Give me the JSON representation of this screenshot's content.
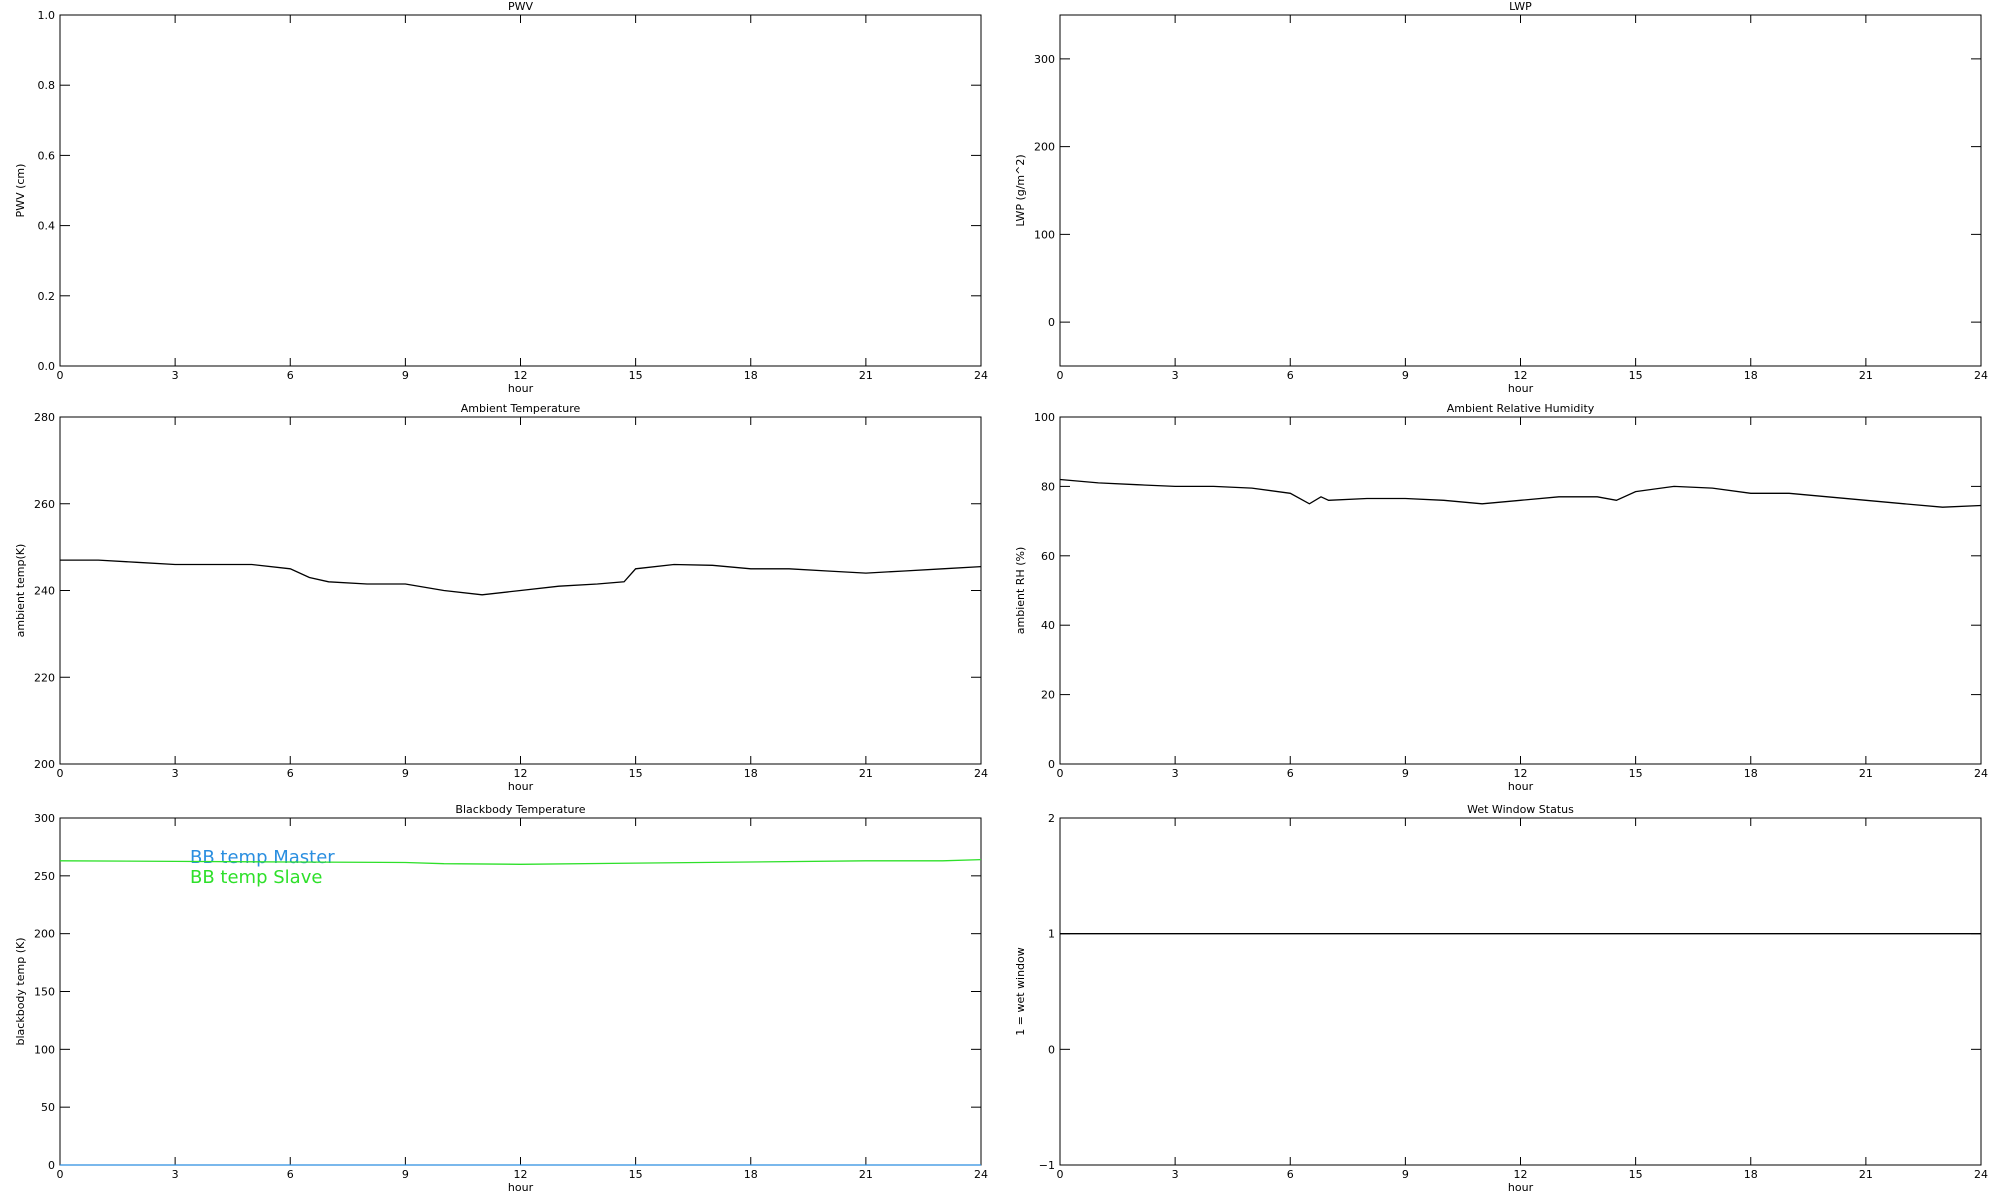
{
  "chart_data": [
    {
      "type": "line",
      "title": "PWV",
      "xlabel": "hour",
      "ylabel": "PWV (cm)",
      "xlim": [
        0,
        24
      ],
      "xticks": [
        0,
        3,
        6,
        9,
        12,
        15,
        18,
        21,
        24
      ],
      "ylim": [
        0,
        1
      ],
      "yticks": [
        {
          "value": 0,
          "label": "0.0"
        },
        0.2,
        0.4,
        0.6,
        0.8,
        {
          "value": 1,
          "label": "1.0"
        }
      ],
      "series": []
    },
    {
      "type": "line",
      "title": "LWP",
      "xlabel": "hour",
      "ylabel": "LWP (g/m^2)",
      "xlim": [
        0,
        24
      ],
      "xticks": [
        0,
        3,
        6,
        9,
        12,
        15,
        18,
        21,
        24
      ],
      "ylim": [
        -50,
        350
      ],
      "yticks": [
        0,
        100,
        200,
        300
      ],
      "series": []
    },
    {
      "type": "line",
      "title": "Ambient Temperature",
      "xlabel": "hour",
      "ylabel": "ambient temp(K)",
      "xlim": [
        0,
        24
      ],
      "xticks": [
        0,
        3,
        6,
        9,
        12,
        15,
        18,
        21,
        24
      ],
      "ylim": [
        200,
        280
      ],
      "yticks": [
        200,
        220,
        240,
        260,
        280
      ],
      "x": [
        0,
        1,
        2,
        3,
        4,
        5,
        6,
        6.5,
        7,
        8,
        9,
        10,
        11,
        12,
        13,
        14,
        14.7,
        15,
        16,
        17,
        18,
        19,
        20,
        21,
        22,
        23,
        24
      ],
      "series": [
        {
          "color": "#000000",
          "values": [
            247,
            247,
            246.5,
            246,
            246,
            246,
            245,
            243,
            242,
            241.5,
            241.5,
            240,
            239,
            240,
            241,
            241.5,
            242,
            245,
            246,
            245.8,
            245,
            245,
            244.5,
            244,
            244.5,
            245,
            245.5
          ]
        }
      ]
    },
    {
      "type": "line",
      "title": "Ambient Relative Humidity",
      "xlabel": "hour",
      "ylabel": "ambient RH (%)",
      "xlim": [
        0,
        24
      ],
      "xticks": [
        0,
        3,
        6,
        9,
        12,
        15,
        18,
        21,
        24
      ],
      "ylim": [
        0,
        100
      ],
      "yticks": [
        0,
        20,
        40,
        60,
        80,
        100
      ],
      "x": [
        0,
        1,
        2,
        3,
        4,
        5,
        6,
        6.5,
        6.8,
        7,
        8,
        9,
        10,
        11,
        12,
        13,
        14,
        14.5,
        15,
        16,
        17,
        18,
        19,
        20,
        21,
        22,
        23,
        24
      ],
      "series": [
        {
          "color": "#000000",
          "values": [
            82,
            81,
            80.5,
            80,
            80,
            79.5,
            78,
            75,
            77,
            76,
            76.5,
            76.5,
            76,
            75,
            76,
            77,
            77,
            76,
            78.5,
            80,
            79.5,
            78,
            78,
            77,
            76,
            75,
            74,
            74.5
          ]
        }
      ]
    },
    {
      "type": "line",
      "title": "Blackbody Temperature",
      "xlabel": "hour",
      "ylabel": "blackbody temp (K)",
      "xlim": [
        0,
        24
      ],
      "xticks": [
        0,
        3,
        6,
        9,
        12,
        15,
        18,
        21,
        24
      ],
      "ylim": [
        0,
        300
      ],
      "yticks": [
        0,
        50,
        100,
        150,
        200,
        250,
        300
      ],
      "x": [
        0,
        3,
        6,
        9,
        10,
        12,
        15,
        18,
        21,
        23,
        24
      ],
      "series": [
        {
          "name": "BB temp Master",
          "color": "#2a8ee0",
          "values": [
            0,
            0,
            0,
            0,
            0,
            0,
            0,
            0,
            0,
            0,
            0
          ]
        },
        {
          "name": "BB temp Slave",
          "color": "#2ee02a",
          "values": [
            263,
            262.5,
            262,
            261.5,
            260.5,
            260,
            261,
            262,
            263,
            263,
            264
          ]
        }
      ]
    },
    {
      "type": "line",
      "title": "Wet Window Status",
      "xlabel": "hour",
      "ylabel": "1 = wet window",
      "xlim": [
        0,
        24
      ],
      "xticks": [
        0,
        3,
        6,
        9,
        12,
        15,
        18,
        21,
        24
      ],
      "ylim": [
        -1,
        2
      ],
      "yticks": [
        {
          "value": -1,
          "label": "−1"
        },
        0,
        1,
        2
      ],
      "x": [
        0,
        24
      ],
      "series": [
        {
          "color": "#000000",
          "values": [
            1,
            1
          ]
        }
      ]
    }
  ]
}
